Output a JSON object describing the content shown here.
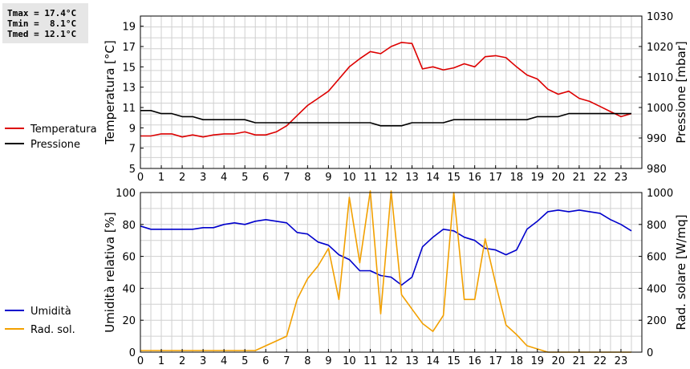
{
  "stats": {
    "tmax": "Tmax = 17.4°C",
    "tmin": "Tmin =  8.1°C",
    "tmed": "Tmed = 12.1°C"
  },
  "chart_data": [
    {
      "type": "line",
      "xlim": [
        0,
        24
      ],
      "x_ticks": [
        "0",
        "1",
        "2",
        "3",
        "4",
        "5",
        "6",
        "7",
        "8",
        "9",
        "10",
        "11",
        "12",
        "13",
        "14",
        "15",
        "16",
        "17",
        "18",
        "19",
        "20",
        "21",
        "22",
        "23"
      ],
      "ylabel_left": "Temperatura [°C]",
      "ylabel_right": "Pressione [mbar]",
      "ylim_left": [
        5,
        20
      ],
      "yticks_left": [
        "5",
        "7",
        "9",
        "11",
        "13",
        "15",
        "17",
        "19"
      ],
      "ylim_right": [
        980,
        1030
      ],
      "yticks_right": [
        "980",
        "990",
        "1000",
        "1010",
        "1020",
        "1030"
      ],
      "grid": true,
      "legend_position": "left",
      "series": [
        {
          "name": "Temperatura",
          "axis": "left",
          "color": "#dd0000",
          "x": [
            0,
            0.5,
            1,
            1.5,
            2,
            2.5,
            3,
            3.5,
            4,
            4.5,
            5,
            5.5,
            6,
            6.5,
            7,
            7.5,
            8,
            8.5,
            9,
            9.5,
            10,
            10.5,
            11,
            11.5,
            12,
            12.5,
            13,
            13.5,
            14,
            14.5,
            15,
            15.5,
            16,
            16.5,
            17,
            17.5,
            18,
            18.5,
            19,
            19.5,
            20,
            20.5,
            21,
            21.5,
            22,
            22.5,
            23,
            23.5
          ],
          "values": [
            8.2,
            8.2,
            8.4,
            8.4,
            8.1,
            8.3,
            8.1,
            8.3,
            8.4,
            8.4,
            8.6,
            8.3,
            8.3,
            8.6,
            9.2,
            10.2,
            11.2,
            11.9,
            12.6,
            13.8,
            15.0,
            15.8,
            16.5,
            16.3,
            17.0,
            17.4,
            17.3,
            14.8,
            15.0,
            14.7,
            14.9,
            15.3,
            15.0,
            16.0,
            16.1,
            15.9,
            15.0,
            14.2,
            13.8,
            12.8,
            12.3,
            12.6,
            11.9,
            11.6,
            11.1,
            10.6,
            10.1,
            10.4
          ]
        },
        {
          "name": "Pressione",
          "axis": "right",
          "color": "#000000",
          "x": [
            0,
            0.5,
            1,
            1.5,
            2,
            2.5,
            3,
            3.5,
            4,
            4.5,
            5,
            5.5,
            6,
            6.5,
            7,
            7.5,
            8,
            8.5,
            9,
            9.5,
            10,
            10.5,
            11,
            11.5,
            12,
            12.5,
            13,
            13.5,
            14,
            14.5,
            15,
            15.5,
            16,
            16.5,
            17,
            17.5,
            18,
            18.5,
            19,
            19.5,
            20,
            20.5,
            21,
            21.5,
            22,
            22.5,
            23,
            23.5
          ],
          "values": [
            999,
            999,
            998,
            998,
            997,
            997,
            996,
            996,
            996,
            996,
            996,
            995,
            995,
            995,
            995,
            995,
            995,
            995,
            995,
            995,
            995,
            995,
            995,
            994,
            994,
            994,
            995,
            995,
            995,
            995,
            996,
            996,
            996,
            996,
            996,
            996,
            996,
            996,
            997,
            997,
            997,
            998,
            998,
            998,
            998,
            998,
            998,
            998
          ]
        }
      ]
    },
    {
      "type": "line",
      "xlim": [
        0,
        24
      ],
      "x_ticks": [
        "0",
        "1",
        "2",
        "3",
        "4",
        "5",
        "6",
        "7",
        "8",
        "9",
        "10",
        "11",
        "12",
        "13",
        "14",
        "15",
        "16",
        "17",
        "18",
        "19",
        "20",
        "21",
        "22",
        "23"
      ],
      "ylabel_left": "Umidità relativa [%]",
      "ylabel_right": "Rad. solare [W/mq]",
      "ylim_left": [
        0,
        100
      ],
      "yticks_left": [
        "0",
        "20",
        "40",
        "60",
        "80",
        "100"
      ],
      "ylim_right": [
        0,
        1000
      ],
      "yticks_right": [
        "0",
        "200",
        "400",
        "600",
        "800",
        "1000"
      ],
      "grid": true,
      "legend_position": "left",
      "series": [
        {
          "name": "Umidità",
          "axis": "left",
          "color": "#0000cc",
          "x": [
            0,
            0.5,
            1,
            1.5,
            2,
            2.5,
            3,
            3.5,
            4,
            4.5,
            5,
            5.5,
            6,
            6.5,
            7,
            7.5,
            8,
            8.5,
            9,
            9.5,
            10,
            10.5,
            11,
            11.5,
            12,
            12.5,
            13,
            13.5,
            14,
            14.5,
            15,
            15.5,
            16,
            16.5,
            17,
            17.5,
            18,
            18.5,
            19,
            19.5,
            20,
            20.5,
            21,
            21.5,
            22,
            22.5,
            23,
            23.5
          ],
          "values": [
            79,
            77,
            77,
            77,
            77,
            77,
            78,
            78,
            80,
            81,
            80,
            82,
            83,
            82,
            81,
            75,
            74,
            69,
            67,
            61,
            58,
            51,
            51,
            48,
            47,
            42,
            47,
            66,
            72,
            77,
            76,
            72,
            70,
            65,
            64,
            61,
            64,
            77,
            82,
            88,
            89,
            88,
            89,
            88,
            87,
            83,
            80,
            76
          ]
        },
        {
          "name": "Rad. sol.",
          "axis": "right",
          "color": "#f2a000",
          "x": [
            0,
            0.5,
            1,
            1.5,
            2,
            2.5,
            3,
            3.5,
            4,
            4.5,
            5,
            5.5,
            6,
            6.5,
            7,
            7.5,
            8,
            8.5,
            9,
            9.5,
            10,
            10.5,
            11,
            11.5,
            12,
            12.5,
            13,
            13.5,
            14,
            14.5,
            15,
            15.5,
            16,
            16.5,
            17,
            17.5,
            18,
            18.5,
            19,
            19.5,
            20,
            20.5,
            21,
            21.5,
            22,
            22.5,
            23,
            23.5
          ],
          "values": [
            10,
            10,
            10,
            10,
            10,
            10,
            10,
            10,
            10,
            10,
            10,
            10,
            40,
            70,
            100,
            330,
            460,
            540,
            650,
            330,
            970,
            560,
            1010,
            240,
            1010,
            360,
            270,
            180,
            130,
            230,
            1000,
            330,
            330,
            710,
            430,
            170,
            110,
            40,
            20,
            0,
            0,
            0,
            0,
            0,
            0,
            0,
            0,
            0
          ]
        }
      ]
    }
  ]
}
